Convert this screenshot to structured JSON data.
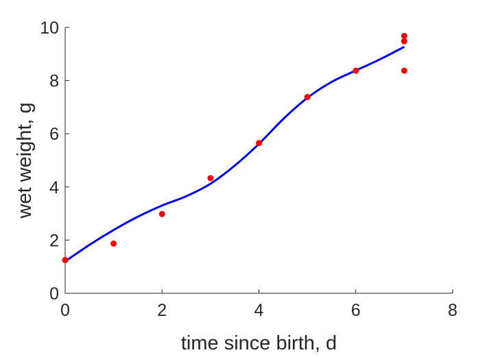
{
  "chart_data": {
    "type": "scatter",
    "title": "",
    "xlabel": "time since birth, d",
    "ylabel": "wet weight, g",
    "xlim": [
      0,
      8
    ],
    "ylim": [
      0,
      10
    ],
    "xticks": [
      0,
      2,
      4,
      6,
      8
    ],
    "yticks": [
      0,
      2,
      4,
      6,
      8,
      10
    ],
    "grid": false,
    "colors": {
      "points": "#ff0000",
      "fit": "#0000ee",
      "axes": "#262626"
    },
    "series": [
      {
        "kind": "points",
        "x": [
          0,
          1,
          2,
          3,
          4,
          5,
          6,
          7,
          7,
          7
        ],
        "y": [
          1.25,
          1.87,
          2.98,
          4.33,
          5.65,
          7.38,
          8.37,
          9.68,
          9.48,
          8.37
        ]
      },
      {
        "kind": "line",
        "x": [
          0,
          0.5,
          1,
          1.5,
          2,
          2.5,
          3,
          3.5,
          4,
          4.5,
          5,
          5.5,
          6,
          6.5,
          7
        ],
        "y": [
          1.2,
          1.82,
          2.38,
          2.88,
          3.3,
          3.65,
          4.12,
          4.8,
          5.62,
          6.55,
          7.35,
          7.95,
          8.38,
          8.8,
          9.27
        ]
      }
    ]
  }
}
